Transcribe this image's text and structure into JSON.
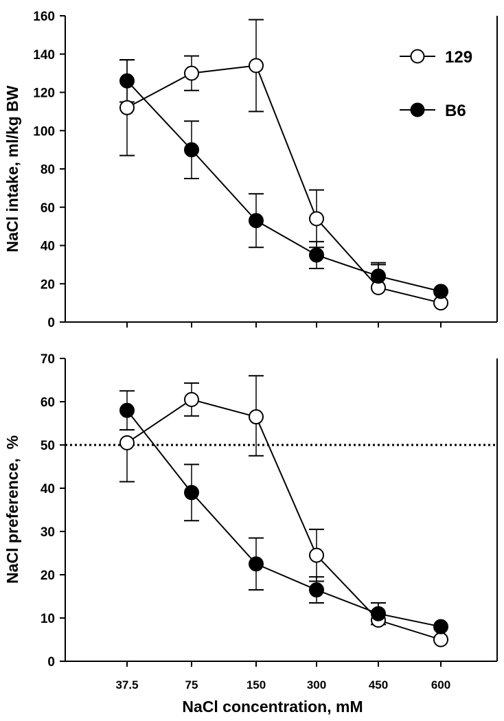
{
  "chart_data": [
    {
      "type": "line",
      "ylabel": "NaCl intake, ml/kg BW",
      "xlabel": "",
      "categories": [
        "37.5",
        "75",
        "150",
        "300",
        "450",
        "600"
      ],
      "ylim": [
        0,
        160
      ],
      "yticks": [
        "0",
        "20",
        "40",
        "60",
        "80",
        "100",
        "120",
        "140",
        "160"
      ],
      "grid": false,
      "legend_position": "top-right",
      "series": [
        {
          "name": "129",
          "marker": "open-circle",
          "values": [
            112,
            130,
            134,
            54,
            18,
            10
          ],
          "err_upper": [
            25,
            9,
            24,
            15,
            13,
            0
          ],
          "err_lower": [
            25,
            9,
            24,
            15,
            0,
            0
          ]
        },
        {
          "name": "B6",
          "marker": "filled-circle",
          "values": [
            126,
            90,
            53,
            35,
            24,
            16
          ],
          "err_upper": [
            11,
            15,
            14,
            7,
            6,
            0
          ],
          "err_lower": [
            11,
            15,
            14,
            7,
            0,
            0
          ]
        }
      ]
    },
    {
      "type": "line",
      "ylabel": "NaCl preference,  %",
      "xlabel": "NaCl concentration, mM",
      "categories": [
        "37.5",
        "75",
        "150",
        "300",
        "450",
        "600"
      ],
      "ylim": [
        0,
        70
      ],
      "yticks": [
        "0",
        "10",
        "20",
        "30",
        "40",
        "50",
        "60",
        "70"
      ],
      "reference_line": 50,
      "grid": false,
      "series": [
        {
          "name": "129",
          "marker": "open-circle",
          "values": [
            50.5,
            60.5,
            56.5,
            24.5,
            9.5,
            5
          ],
          "err_upper": [
            0,
            3.8,
            9.5,
            6,
            4,
            0
          ],
          "err_lower": [
            9,
            3.8,
            9,
            6,
            0,
            0
          ]
        },
        {
          "name": "B6",
          "marker": "filled-circle",
          "values": [
            58,
            39,
            22.5,
            16.5,
            11,
            8
          ],
          "err_upper": [
            4.5,
            6.5,
            6,
            3,
            2.5,
            0
          ],
          "err_lower": [
            4.5,
            6.5,
            6,
            3,
            2.5,
            0
          ]
        }
      ]
    }
  ]
}
